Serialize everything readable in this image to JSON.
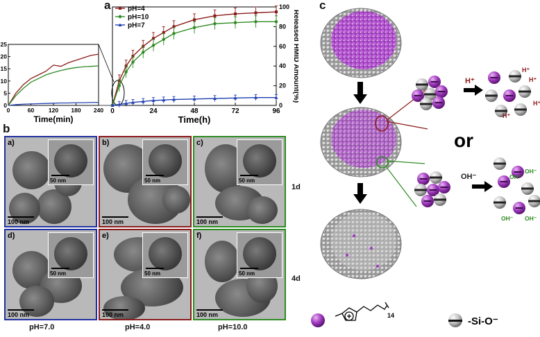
{
  "panel_a": {
    "letter": "a",
    "legend": [
      "pH=4",
      "pH=10",
      "pH=7"
    ],
    "colors": {
      "ph4": "#8b1a1a",
      "ph10": "#2e8b22",
      "ph7": "#1f3fb0"
    },
    "main_xlabel": "Time(h)",
    "main_ylabel": "Released HMID Amount(%)",
    "main_xticks": [
      "0",
      "24",
      "48",
      "72",
      "96"
    ],
    "main_yticks": [
      "0",
      "20",
      "40",
      "60",
      "80",
      "100"
    ],
    "inset_xlabel": "Time(min)",
    "inset_xticks": [
      "0",
      "60",
      "120",
      "180",
      "240"
    ],
    "inset_yticks": [
      "0",
      "5",
      "10",
      "15",
      "20",
      "25"
    ]
  },
  "chart_data": [
    {
      "type": "line",
      "xlabel": "Time(h)",
      "ylabel": "Released HMID Amount(%)",
      "xlim": [
        0,
        96
      ],
      "ylim": [
        0,
        100
      ],
      "x": [
        0,
        4,
        8,
        12,
        18,
        24,
        30,
        36,
        48,
        60,
        72,
        84,
        96
      ],
      "series": [
        {
          "name": "pH=4",
          "values": [
            0,
            25,
            40,
            50,
            60,
            68,
            74,
            80,
            87,
            91,
            93,
            94,
            95
          ]
        },
        {
          "name": "pH=10",
          "values": [
            0,
            20,
            34,
            44,
            54,
            61,
            67,
            73,
            79,
            83,
            84,
            85,
            85
          ]
        },
        {
          "name": "pH=7",
          "values": [
            0,
            1,
            2,
            3,
            4,
            5,
            5.5,
            6,
            6.5,
            7,
            7.5,
            8,
            8
          ]
        }
      ]
    },
    {
      "type": "line",
      "xlabel": "Time(min)",
      "xlim": [
        0,
        240
      ],
      "ylim": [
        0,
        25
      ],
      "x": [
        0,
        20,
        40,
        60,
        80,
        100,
        120,
        140,
        160,
        180,
        200,
        220,
        240
      ],
      "series": [
        {
          "name": "pH=4",
          "values": [
            0,
            5,
            8.5,
            11,
            12.5,
            14,
            16.5,
            16,
            17.5,
            18.5,
            19.5,
            20.5,
            21
          ]
        },
        {
          "name": "pH=10",
          "values": [
            0,
            4,
            7,
            9.5,
            11,
            12.5,
            13.5,
            14.3,
            15,
            15.5,
            15.8,
            16,
            16.2
          ]
        },
        {
          "name": "pH=7",
          "values": [
            0,
            0.3,
            0.5,
            0.6,
            0.7,
            0.8,
            0.9,
            1.0,
            1.0,
            1.1,
            1.1,
            1.2,
            1.2
          ]
        }
      ]
    }
  ],
  "panel_b": {
    "letter": "b",
    "subpanels": [
      {
        "label": "a)",
        "inset": "50 nm",
        "scale": "100 nm"
      },
      {
        "label": "b)",
        "inset": "50 nm",
        "scale": "100 nm"
      },
      {
        "label": "c)",
        "inset": "50 nm",
        "scale": "100 nm"
      },
      {
        "label": "d)",
        "inset": "50 nm",
        "scale": "100 nm"
      },
      {
        "label": "e)",
        "inset": "50 nm",
        "scale": "100 nm"
      },
      {
        "label": "f)",
        "inset": "50 nm",
        "scale": "100 nm"
      }
    ],
    "row_labels": [
      "1d",
      "4d"
    ],
    "column_labels": [
      "pH=7.0",
      "pH=4.0",
      "pH=10.0"
    ],
    "frame_colors": [
      "#2030a0",
      "#8b1a1a",
      "#2e8b22"
    ]
  },
  "panel_c": {
    "letter": "c",
    "acid_ion": "H⁺",
    "base_ion": "OH⁻",
    "or_text": "or",
    "legend_subscript": "14",
    "legend_silica": "-Si-O⁻"
  }
}
